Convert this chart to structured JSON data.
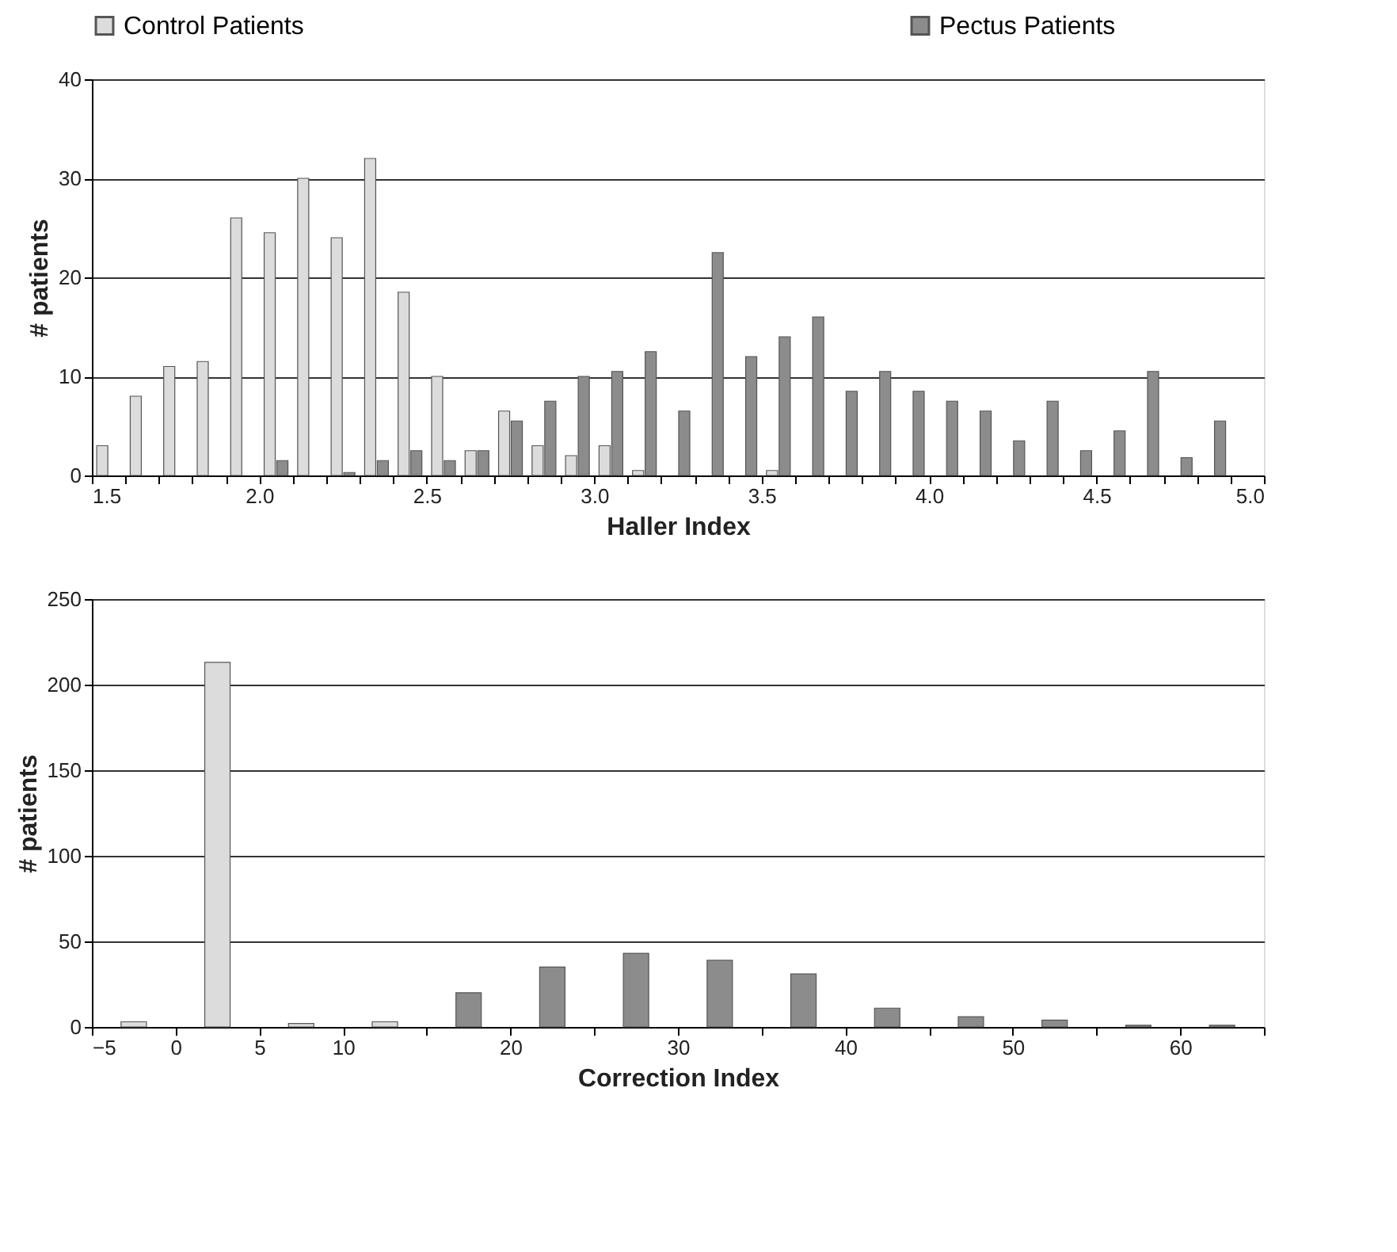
{
  "chart_data": [
    {
      "type": "bar",
      "xlabel": "Haller Index",
      "ylabel": "# patients",
      "legend": "top",
      "grid": "y",
      "xlim": [
        1.5,
        5.0
      ],
      "ylim": [
        0,
        40
      ],
      "yticks": [
        0,
        10,
        20,
        30,
        40
      ],
      "xticks": [
        {
          "value": 1.5,
          "label": "1.5"
        },
        {
          "value": 1.6,
          "label": null
        },
        {
          "value": 1.7,
          "label": null
        },
        {
          "value": 1.8,
          "label": null
        },
        {
          "value": 1.9,
          "label": null
        },
        {
          "value": 2.0,
          "label": "2.0"
        },
        {
          "value": 2.1,
          "label": null
        },
        {
          "value": 2.2,
          "label": null
        },
        {
          "value": 2.3,
          "label": null
        },
        {
          "value": 2.4,
          "label": null
        },
        {
          "value": 2.5,
          "label": "2.5"
        },
        {
          "value": 2.6,
          "label": null
        },
        {
          "value": 2.7,
          "label": null
        },
        {
          "value": 2.8,
          "label": null
        },
        {
          "value": 2.9,
          "label": null
        },
        {
          "value": 3.0,
          "label": "3.0"
        },
        {
          "value": 3.1,
          "label": null
        },
        {
          "value": 3.2,
          "label": null
        },
        {
          "value": 3.3,
          "label": null
        },
        {
          "value": 3.4,
          "label": null
        },
        {
          "value": 3.5,
          "label": "3.5"
        },
        {
          "value": 3.6,
          "label": null
        },
        {
          "value": 3.7,
          "label": null
        },
        {
          "value": 3.8,
          "label": null
        },
        {
          "value": 3.9,
          "label": null
        },
        {
          "value": 4.0,
          "label": "4.0"
        },
        {
          "value": 4.1,
          "label": null
        },
        {
          "value": 4.2,
          "label": null
        },
        {
          "value": 4.3,
          "label": null
        },
        {
          "value": 4.4,
          "label": null
        },
        {
          "value": 4.5,
          "label": "4.5"
        },
        {
          "value": 4.6,
          "label": null
        },
        {
          "value": 4.7,
          "label": null
        },
        {
          "value": 4.8,
          "label": null
        },
        {
          "value": 4.9,
          "label": null
        },
        {
          "value": 5.0,
          "label": "5.0"
        }
      ],
      "series": [
        {
          "name": "Control Patients",
          "color": "#dcdcdc",
          "x": [
            1.55,
            1.65,
            1.75,
            1.85,
            1.95,
            2.05,
            2.15,
            2.25,
            2.35,
            2.45,
            2.55,
            2.65,
            2.75,
            2.85,
            2.95,
            3.05,
            3.15,
            3.55
          ],
          "values": [
            3,
            8,
            11,
            11.5,
            26,
            24.5,
            30,
            24,
            32,
            18.5,
            10,
            2.5,
            6.5,
            3,
            2,
            3,
            0.5,
            0.5
          ]
        },
        {
          "name": "Pectus Patients",
          "color": "#8c8c8c",
          "x": [
            2.05,
            2.25,
            2.35,
            2.45,
            2.55,
            2.65,
            2.75,
            2.85,
            2.95,
            3.05,
            3.15,
            3.25,
            3.35,
            3.45,
            3.55,
            3.65,
            3.75,
            3.85,
            3.95,
            4.05,
            4.15,
            4.25,
            4.35,
            4.45,
            4.55,
            4.65,
            4.75,
            4.85
          ],
          "values": [
            1.5,
            0.3,
            1.5,
            2.5,
            1.5,
            2.5,
            5.5,
            7.5,
            10,
            10.5,
            12.5,
            6.5,
            22.5,
            12,
            14,
            16,
            8.5,
            10.5,
            8.5,
            7.5,
            6.5,
            3.5,
            7.5,
            2.5,
            4.5,
            10.5,
            1.8,
            5.5
          ]
        }
      ]
    },
    {
      "type": "bar",
      "xlabel": "Correction Index",
      "ylabel": "# patients",
      "grid": "y",
      "xlim": [
        -5,
        65
      ],
      "ylim": [
        0,
        250
      ],
      "yticks": [
        0,
        50,
        100,
        150,
        200,
        250
      ],
      "xticks": [
        -5,
        0,
        5,
        10,
        {
          "value": 15,
          "label": null
        },
        20,
        {
          "value": 25,
          "label": null
        },
        30,
        {
          "value": 35,
          "label": null
        },
        40,
        {
          "value": 45,
          "label": null
        },
        50,
        {
          "value": 55,
          "label": null
        },
        60,
        {
          "value": 65,
          "label": null
        }
      ],
      "x": [
        -2.5,
        2.5,
        7.5,
        12.5,
        17.5,
        22.5,
        27.5,
        32.5,
        37.5,
        42.5,
        47.5,
        52.5,
        57.5,
        62.5
      ],
      "values": [
        3,
        213,
        2,
        3,
        20,
        35,
        43,
        39,
        31,
        11,
        6,
        4,
        1,
        1
      ],
      "colors": [
        "#dcdcdc",
        "#dcdcdc",
        "#dcdcdc",
        "#dcdcdc",
        "#8c8c8c",
        "#8c8c8c",
        "#8c8c8c",
        "#8c8c8c",
        "#8c8c8c",
        "#8c8c8c",
        "#8c8c8c",
        "#8c8c8c",
        "#8c8c8c",
        "#8c8c8c"
      ]
    }
  ]
}
